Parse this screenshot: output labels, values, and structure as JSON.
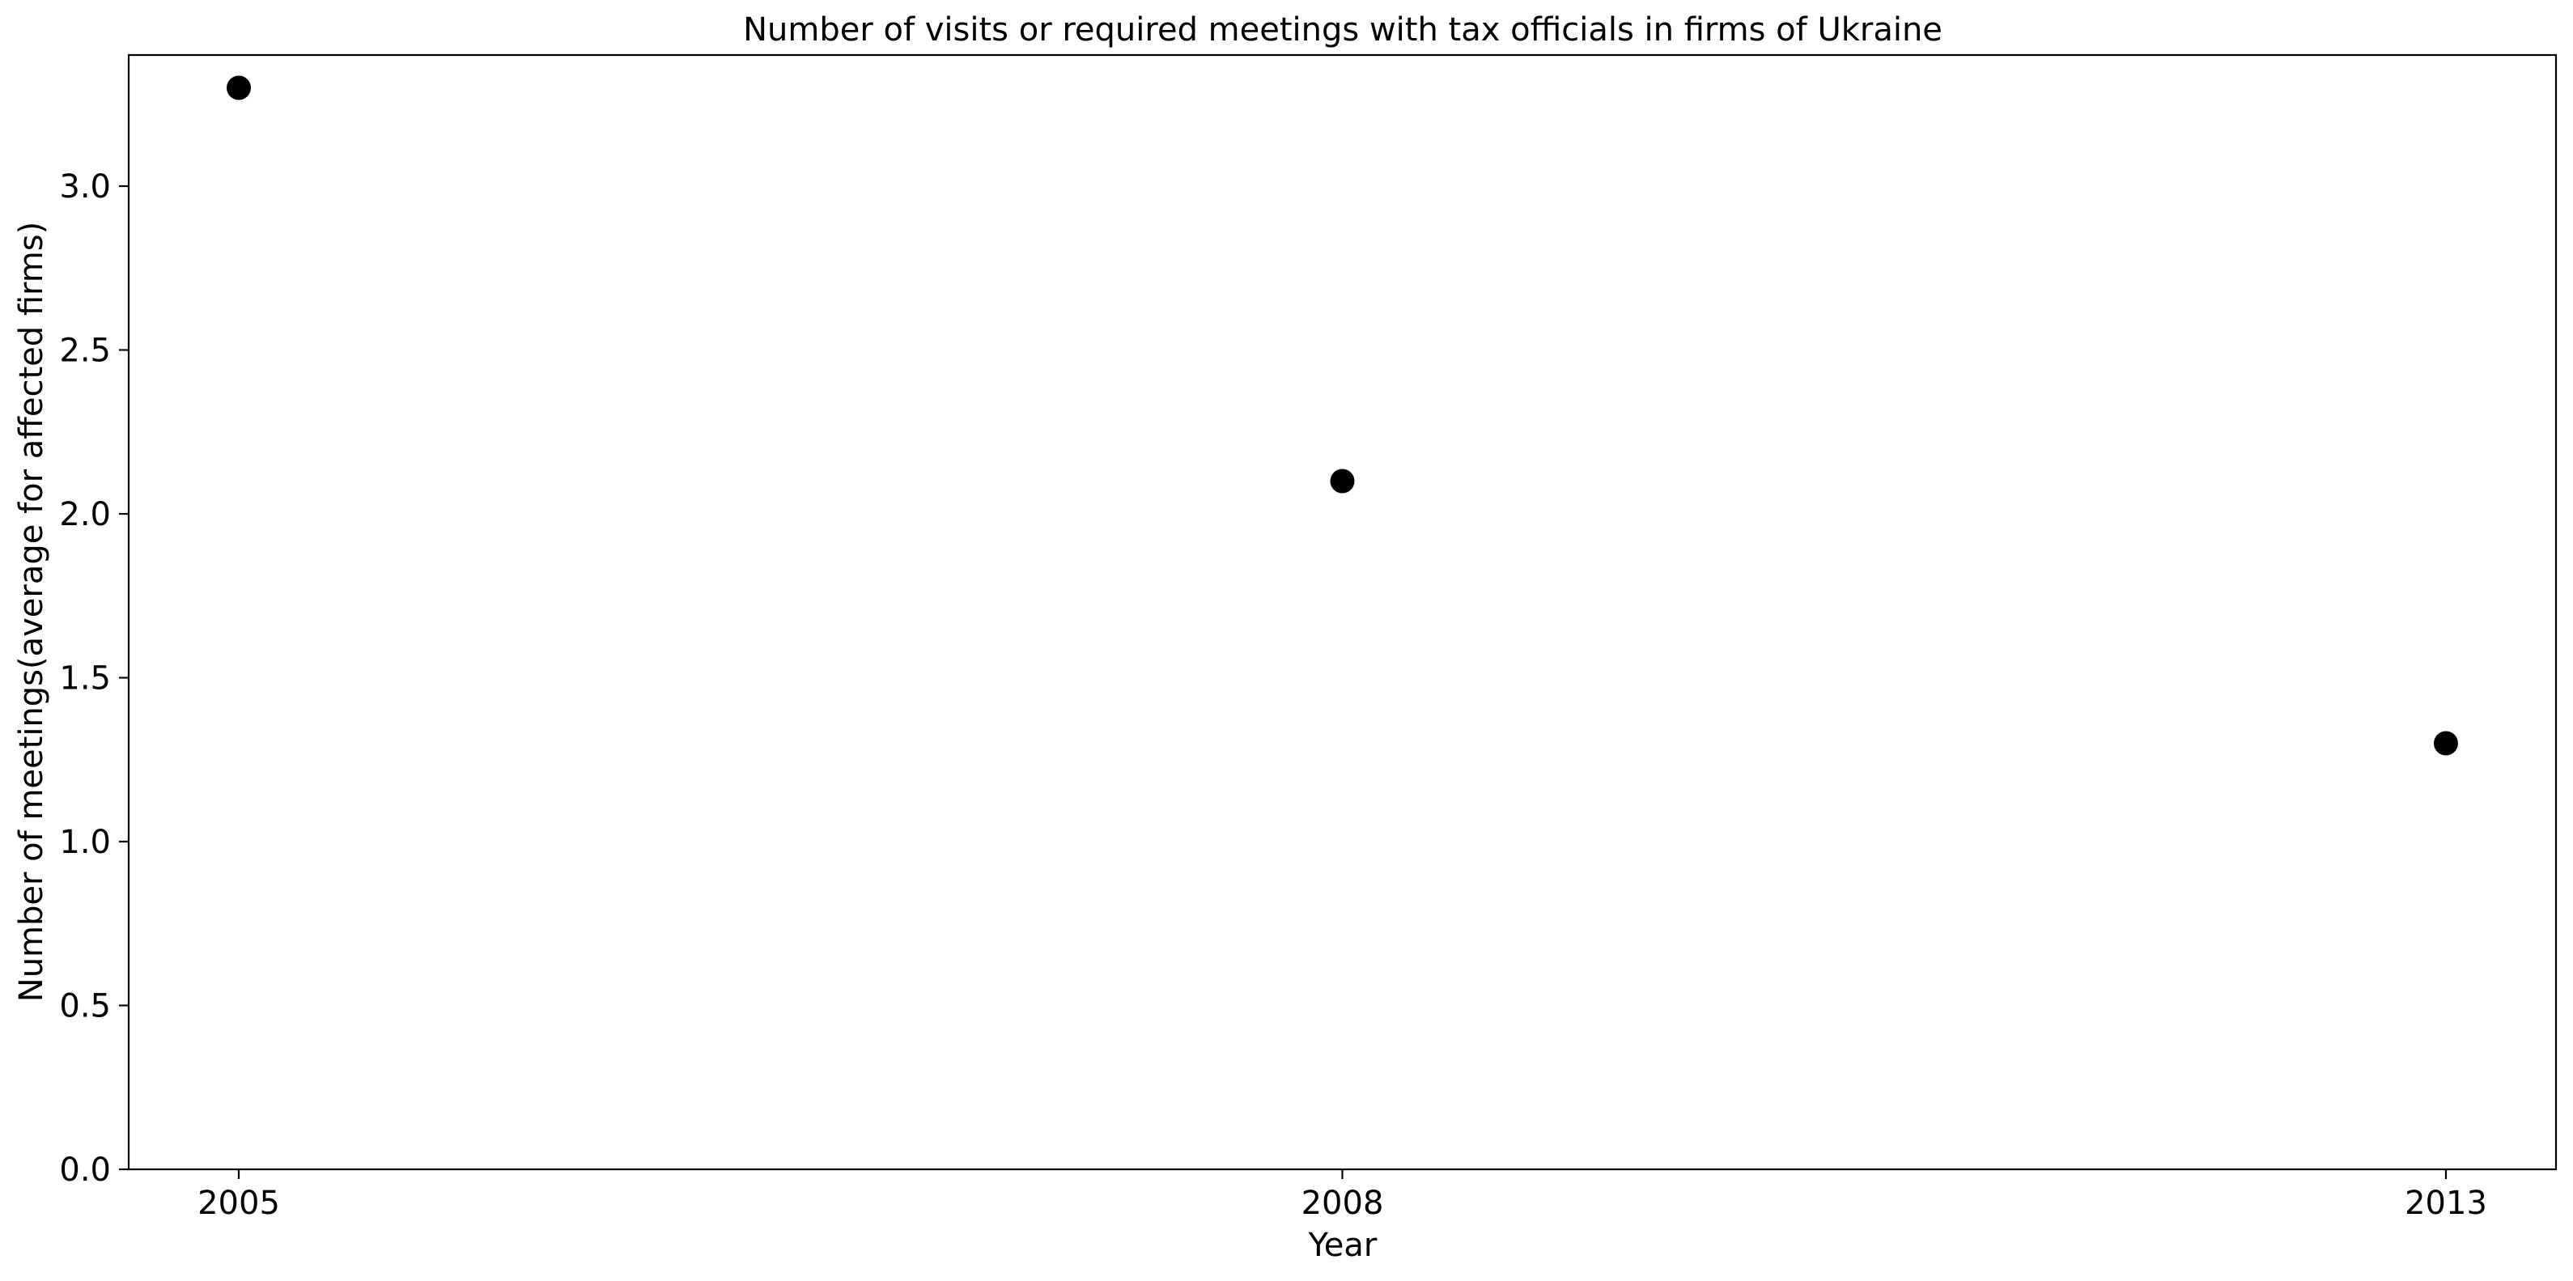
{
  "chart_data": {
    "type": "scatter",
    "title": "Number of visits or required meetings with tax officials in firms of Ukraine",
    "xlabel": "Year",
    "ylabel": "Number of meetings(average for affected firms)",
    "categories": [
      "2005",
      "2008",
      "2013"
    ],
    "series": [
      {
        "values": [
          3.3,
          2.1,
          1.3
        ],
        "color": "#000000",
        "marker": "circle"
      }
    ],
    "ylim": [
      0,
      3.4
    ],
    "yticks": [
      0.0,
      0.5,
      1.0,
      1.5,
      2.0,
      2.5,
      3.0
    ],
    "ytick_labels": [
      "0.0",
      "0.5",
      "1.0",
      "1.5",
      "2.0",
      "2.5",
      "3.0"
    ],
    "grid": false,
    "legend": "none"
  }
}
